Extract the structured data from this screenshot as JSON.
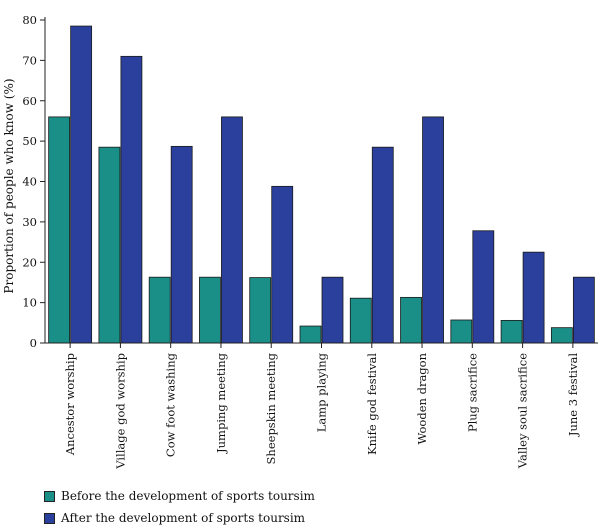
{
  "chart_data": {
    "type": "bar",
    "categories": [
      "Ancestor worship",
      "Village god worship",
      "Cow foot washing",
      "Jumping meeting",
      "Sheepskin meeting",
      "Lamp playing",
      "Knife god festival",
      "Wooden dragon",
      "Plug sacrifice",
      "Valley soul sacrifice",
      "June 3 festival"
    ],
    "series": [
      {
        "name": "Before the development of sports toursim",
        "color": "#1a8f87",
        "values": [
          56,
          48.5,
          16.3,
          16.3,
          16.2,
          4.2,
          11.1,
          11.3,
          5.7,
          5.6,
          3.8
        ]
      },
      {
        "name": "After the development of sports toursim",
        "color": "#2b3f9c",
        "values": [
          78.5,
          71,
          48.7,
          56,
          38.8,
          16.3,
          48.5,
          56,
          27.8,
          22.5,
          16.3
        ]
      }
    ],
    "ylabel": "Proportion of people who know (%)",
    "ylim": [
      0,
      80
    ],
    "yticks": [
      0,
      10,
      20,
      30,
      40,
      50,
      60,
      70,
      80
    ],
    "legend_position": "bottom-left",
    "grid": false
  }
}
